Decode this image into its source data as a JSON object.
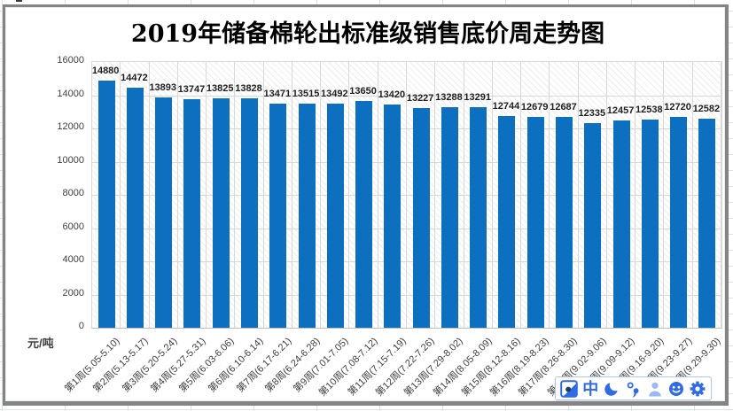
{
  "chart_data": {
    "type": "bar",
    "title": "2019年储备棉轮出标准级销售底价周走势图",
    "ylabel": "元/吨",
    "xlabel": "",
    "ylim": [
      0,
      16000
    ],
    "ytick_step": 2000,
    "grid": true,
    "legend": "none",
    "bar_color": "#0d6fc0",
    "data_labels": true,
    "categories": [
      "第1周(5.05-5.10)",
      "第2周(5.13-5.17)",
      "第3周(5.20-5.24)",
      "第4周(5.27-5.31)",
      "第5周(6.03-6.06)",
      "第6周(6.10-6.14)",
      "第7周(6.17-6.21)",
      "第8周(6.24-6.28)",
      "第9周(7.01-7.05)",
      "第10周(7.08-7.12)",
      "第11周(7.15-7.19)",
      "第12周(7.22-7.26)",
      "第13周(7.29-8.02)",
      "第14周(8.05-8.09)",
      "第15周(8.12-8.16)",
      "第16周(8.19-8.23)",
      "第17周(8.26-8.30)",
      "第18周(9.02-9.06)",
      "周(9.09-9.12)",
      "周(9.16-9.20)",
      "周(9.23-9.27)",
      "周(9.29-9.30)"
    ],
    "values": [
      14880,
      14472,
      13893,
      13747,
      13825,
      13828,
      13471,
      13515,
      13492,
      13650,
      13420,
      13227,
      13288,
      13291,
      12744,
      12679,
      12687,
      12335,
      12457,
      12538,
      12720,
      12582
    ]
  },
  "chart": {
    "title": "2019年储备棉轮出标准级销售底价周走势图",
    "unit_label": "元/吨"
  },
  "ime_toolbar": {
    "mode_label": "中",
    "icons": [
      "sogou-logo-icon",
      "chinese-mode-indicator",
      "half-full-width-moon-icon",
      "punctuation-mode-icon",
      "account-person-icon",
      "emoji-smiley-icon",
      "settings-gear-icon"
    ],
    "accent_color": "#2f6be4",
    "person_color": "#9cb8f0"
  }
}
